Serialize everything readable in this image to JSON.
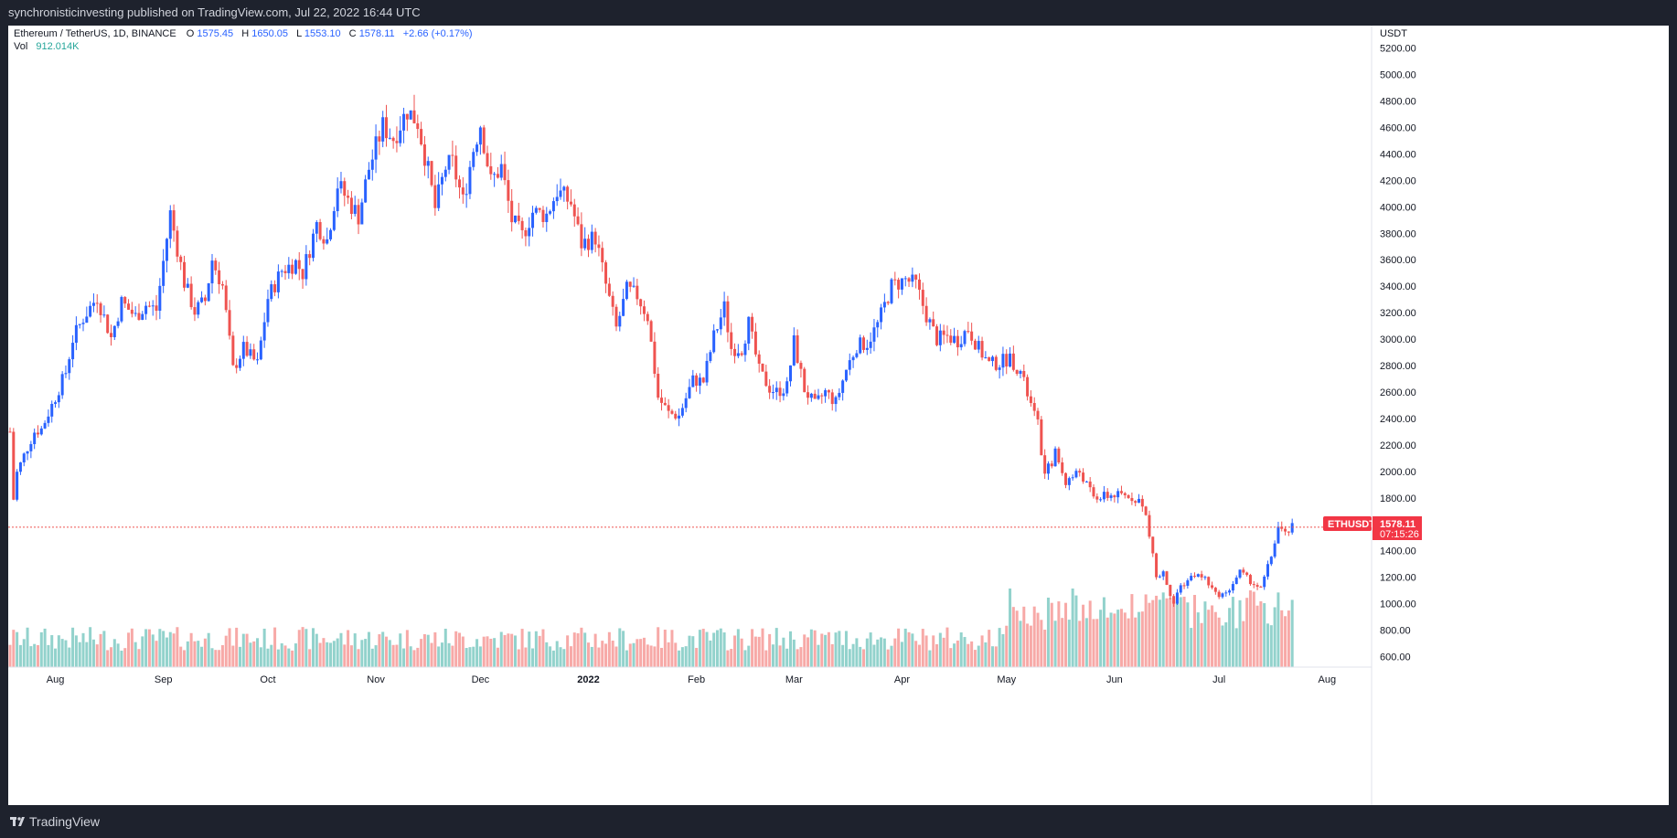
{
  "header": {
    "publish_line": "synchronisticinvesting published on TradingView.com, Jul 22, 2022 16:44 UTC"
  },
  "legend": {
    "symbol": "Ethereum / TetherUS, 1D, BINANCE",
    "o_label": "O",
    "o_value": "1575.45",
    "h_label": "H",
    "h_value": "1650.05",
    "l_label": "L",
    "l_value": "1553.10",
    "c_label": "C",
    "c_value": "1578.11",
    "change": "+2.66 (+0.17%)",
    "vol_label": "Vol",
    "vol_value": "912.014K"
  },
  "price_tag": {
    "symbol": "ETHUSDT",
    "price": "1578.11",
    "countdown": "07:15:26"
  },
  "footer": {
    "brand": "TradingView"
  },
  "colors": {
    "up": "#2962ff",
    "down": "#ef5350",
    "vol_up": "#26a69a",
    "vol_down": "#ef5350",
    "axis_text": "#131722",
    "price_line": "#ef5350",
    "tag_bg": "#f23645"
  },
  "chart_data": {
    "type": "candlestick",
    "currency_label": "USDT",
    "price_axis": {
      "ylim": [
        520,
        5260
      ],
      "ticks": [
        600,
        800,
        1000,
        1200,
        1400,
        1600,
        1800,
        2000,
        2200,
        2400,
        2600,
        2800,
        3000,
        3200,
        3400,
        3600,
        3800,
        4000,
        4200,
        4400,
        4600,
        4800,
        5000,
        5200
      ],
      "tick_labels": [
        "600.00",
        "800.00",
        "1000.00",
        "1200.00",
        "1400.00",
        "1600.00",
        "1800.00",
        "2000.00",
        "2200.00",
        "2400.00",
        "2600.00",
        "2800.00",
        "3000.00",
        "3200.00",
        "3400.00",
        "3600.00",
        "3800.00",
        "4000.00",
        "4200.00",
        "4400.00",
        "4600.00",
        "4800.00",
        "5000.00",
        "5200.00"
      ]
    },
    "time_axis": {
      "start": "2021-07-19",
      "end": "2022-08-13",
      "labels": [
        {
          "date": "2021-08-01",
          "text": "Aug"
        },
        {
          "date": "2021-09-01",
          "text": "Sep"
        },
        {
          "date": "2021-10-01",
          "text": "Oct"
        },
        {
          "date": "2021-11-01",
          "text": "Nov"
        },
        {
          "date": "2021-12-01",
          "text": "Dec"
        },
        {
          "date": "2022-01-01",
          "text": "2022"
        },
        {
          "date": "2022-02-01",
          "text": "Feb"
        },
        {
          "date": "2022-03-01",
          "text": "Mar"
        },
        {
          "date": "2022-04-01",
          "text": "Apr"
        },
        {
          "date": "2022-05-01",
          "text": "May"
        },
        {
          "date": "2022-06-01",
          "text": "Jun"
        },
        {
          "date": "2022-07-01",
          "text": "Jul"
        },
        {
          "date": "2022-08-01",
          "text": "Aug"
        }
      ]
    },
    "last_price": 1578.11,
    "closes": [
      {
        "date": "2021-07-19",
        "close": 2300
      },
      {
        "date": "2021-07-20",
        "close": 1790
      },
      {
        "date": "2021-07-21",
        "close": 1990
      },
      {
        "date": "2021-07-23",
        "close": 2120
      },
      {
        "date": "2021-07-26",
        "close": 2300
      },
      {
        "date": "2021-07-28",
        "close": 2320
      },
      {
        "date": "2021-08-01",
        "close": 2560
      },
      {
        "date": "2021-08-04",
        "close": 2750
      },
      {
        "date": "2021-08-06",
        "close": 3000
      },
      {
        "date": "2021-08-09",
        "close": 3160
      },
      {
        "date": "2021-08-13",
        "close": 3320
      },
      {
        "date": "2021-08-17",
        "close": 3010
      },
      {
        "date": "2021-08-20",
        "close": 3280
      },
      {
        "date": "2021-08-24",
        "close": 3170
      },
      {
        "date": "2021-08-27",
        "close": 3260
      },
      {
        "date": "2021-08-30",
        "close": 3220
      },
      {
        "date": "2021-09-03",
        "close": 3950
      },
      {
        "date": "2021-09-07",
        "close": 3430
      },
      {
        "date": "2021-09-10",
        "close": 3210
      },
      {
        "date": "2021-09-13",
        "close": 3290
      },
      {
        "date": "2021-09-15",
        "close": 3600
      },
      {
        "date": "2021-09-18",
        "close": 3400
      },
      {
        "date": "2021-09-21",
        "close": 2770
      },
      {
        "date": "2021-09-24",
        "close": 2930
      },
      {
        "date": "2021-09-28",
        "close": 2810
      },
      {
        "date": "2021-10-01",
        "close": 3310
      },
      {
        "date": "2021-10-05",
        "close": 3520
      },
      {
        "date": "2021-10-09",
        "close": 3580
      },
      {
        "date": "2021-10-11",
        "close": 3500
      },
      {
        "date": "2021-10-15",
        "close": 3870
      },
      {
        "date": "2021-10-18",
        "close": 3750
      },
      {
        "date": "2021-10-21",
        "close": 4170
      },
      {
        "date": "2021-10-24",
        "close": 4050
      },
      {
        "date": "2021-10-27",
        "close": 3930
      },
      {
        "date": "2021-10-30",
        "close": 4290
      },
      {
        "date": "2021-11-03",
        "close": 4610
      },
      {
        "date": "2021-11-06",
        "close": 4520
      },
      {
        "date": "2021-11-10",
        "close": 4730
      },
      {
        "date": "2021-11-13",
        "close": 4640
      },
      {
        "date": "2021-11-16",
        "close": 4270
      },
      {
        "date": "2021-11-18",
        "close": 3990
      },
      {
        "date": "2021-11-21",
        "close": 4300
      },
      {
        "date": "2021-11-23",
        "close": 4330
      },
      {
        "date": "2021-11-26",
        "close": 4040
      },
      {
        "date": "2021-11-29",
        "close": 4440
      },
      {
        "date": "2021-12-01",
        "close": 4630
      },
      {
        "date": "2021-12-04",
        "close": 4190
      },
      {
        "date": "2021-12-07",
        "close": 4300
      },
      {
        "date": "2021-12-10",
        "close": 3900
      },
      {
        "date": "2021-12-13",
        "close": 3780
      },
      {
        "date": "2021-12-16",
        "close": 3960
      },
      {
        "date": "2021-12-20",
        "close": 3940
      },
      {
        "date": "2021-12-23",
        "close": 4120
      },
      {
        "date": "2021-12-27",
        "close": 4030
      },
      {
        "date": "2021-12-30",
        "close": 3720
      },
      {
        "date": "2022-01-03",
        "close": 3770
      },
      {
        "date": "2022-01-06",
        "close": 3410
      },
      {
        "date": "2022-01-09",
        "close": 3080
      },
      {
        "date": "2022-01-12",
        "close": 3370
      },
      {
        "date": "2022-01-15",
        "close": 3330
      },
      {
        "date": "2022-01-18",
        "close": 3170
      },
      {
        "date": "2022-01-21",
        "close": 2560
      },
      {
        "date": "2022-01-24",
        "close": 2440
      },
      {
        "date": "2022-01-27",
        "close": 2420
      },
      {
        "date": "2022-01-31",
        "close": 2690
      },
      {
        "date": "2022-02-03",
        "close": 2680
      },
      {
        "date": "2022-02-06",
        "close": 3020
      },
      {
        "date": "2022-02-09",
        "close": 3240
      },
      {
        "date": "2022-02-11",
        "close": 2930
      },
      {
        "date": "2022-02-14",
        "close": 2930
      },
      {
        "date": "2022-02-16",
        "close": 3120
      },
      {
        "date": "2022-02-19",
        "close": 2760
      },
      {
        "date": "2022-02-22",
        "close": 2630
      },
      {
        "date": "2022-02-24",
        "close": 2600
      },
      {
        "date": "2022-02-27",
        "close": 2640
      },
      {
        "date": "2022-03-01",
        "close": 2980
      },
      {
        "date": "2022-03-04",
        "close": 2620
      },
      {
        "date": "2022-03-07",
        "close": 2500
      },
      {
        "date": "2022-03-10",
        "close": 2600
      },
      {
        "date": "2022-03-13",
        "close": 2520
      },
      {
        "date": "2022-03-16",
        "close": 2770
      },
      {
        "date": "2022-03-19",
        "close": 2950
      },
      {
        "date": "2022-03-22",
        "close": 2970
      },
      {
        "date": "2022-03-25",
        "close": 3110
      },
      {
        "date": "2022-03-29",
        "close": 3400
      },
      {
        "date": "2022-04-02",
        "close": 3450
      },
      {
        "date": "2022-04-05",
        "close": 3410
      },
      {
        "date": "2022-04-08",
        "close": 3180
      },
      {
        "date": "2022-04-11",
        "close": 3000
      },
      {
        "date": "2022-04-14",
        "close": 3020
      },
      {
        "date": "2022-04-17",
        "close": 2990
      },
      {
        "date": "2022-04-20",
        "close": 3080
      },
      {
        "date": "2022-04-23",
        "close": 2930
      },
      {
        "date": "2022-04-26",
        "close": 2810
      },
      {
        "date": "2022-04-29",
        "close": 2820
      },
      {
        "date": "2022-05-02",
        "close": 2860
      },
      {
        "date": "2022-05-05",
        "close": 2750
      },
      {
        "date": "2022-05-08",
        "close": 2500
      },
      {
        "date": "2022-05-10",
        "close": 2350
      },
      {
        "date": "2022-05-12",
        "close": 1960
      },
      {
        "date": "2022-05-15",
        "close": 2140
      },
      {
        "date": "2022-05-18",
        "close": 1920
      },
      {
        "date": "2022-05-22",
        "close": 2000
      },
      {
        "date": "2022-05-26",
        "close": 1800
      },
      {
        "date": "2022-05-29",
        "close": 1810
      },
      {
        "date": "2022-06-01",
        "close": 1820
      },
      {
        "date": "2022-06-05",
        "close": 1810
      },
      {
        "date": "2022-06-08",
        "close": 1790
      },
      {
        "date": "2022-06-10",
        "close": 1660
      },
      {
        "date": "2022-06-13",
        "close": 1200
      },
      {
        "date": "2022-06-15",
        "close": 1230
      },
      {
        "date": "2022-06-18",
        "close": 1000
      },
      {
        "date": "2022-06-20",
        "close": 1130
      },
      {
        "date": "2022-06-24",
        "close": 1220
      },
      {
        "date": "2022-06-27",
        "close": 1190
      },
      {
        "date": "2022-06-30",
        "close": 1070
      },
      {
        "date": "2022-07-03",
        "close": 1070
      },
      {
        "date": "2022-07-07",
        "close": 1240
      },
      {
        "date": "2022-07-10",
        "close": 1170
      },
      {
        "date": "2022-07-13",
        "close": 1110
      },
      {
        "date": "2022-07-16",
        "close": 1360
      },
      {
        "date": "2022-07-18",
        "close": 1580
      },
      {
        "date": "2022-07-20",
        "close": 1520
      },
      {
        "date": "2022-07-22",
        "close": 1578
      }
    ]
  }
}
